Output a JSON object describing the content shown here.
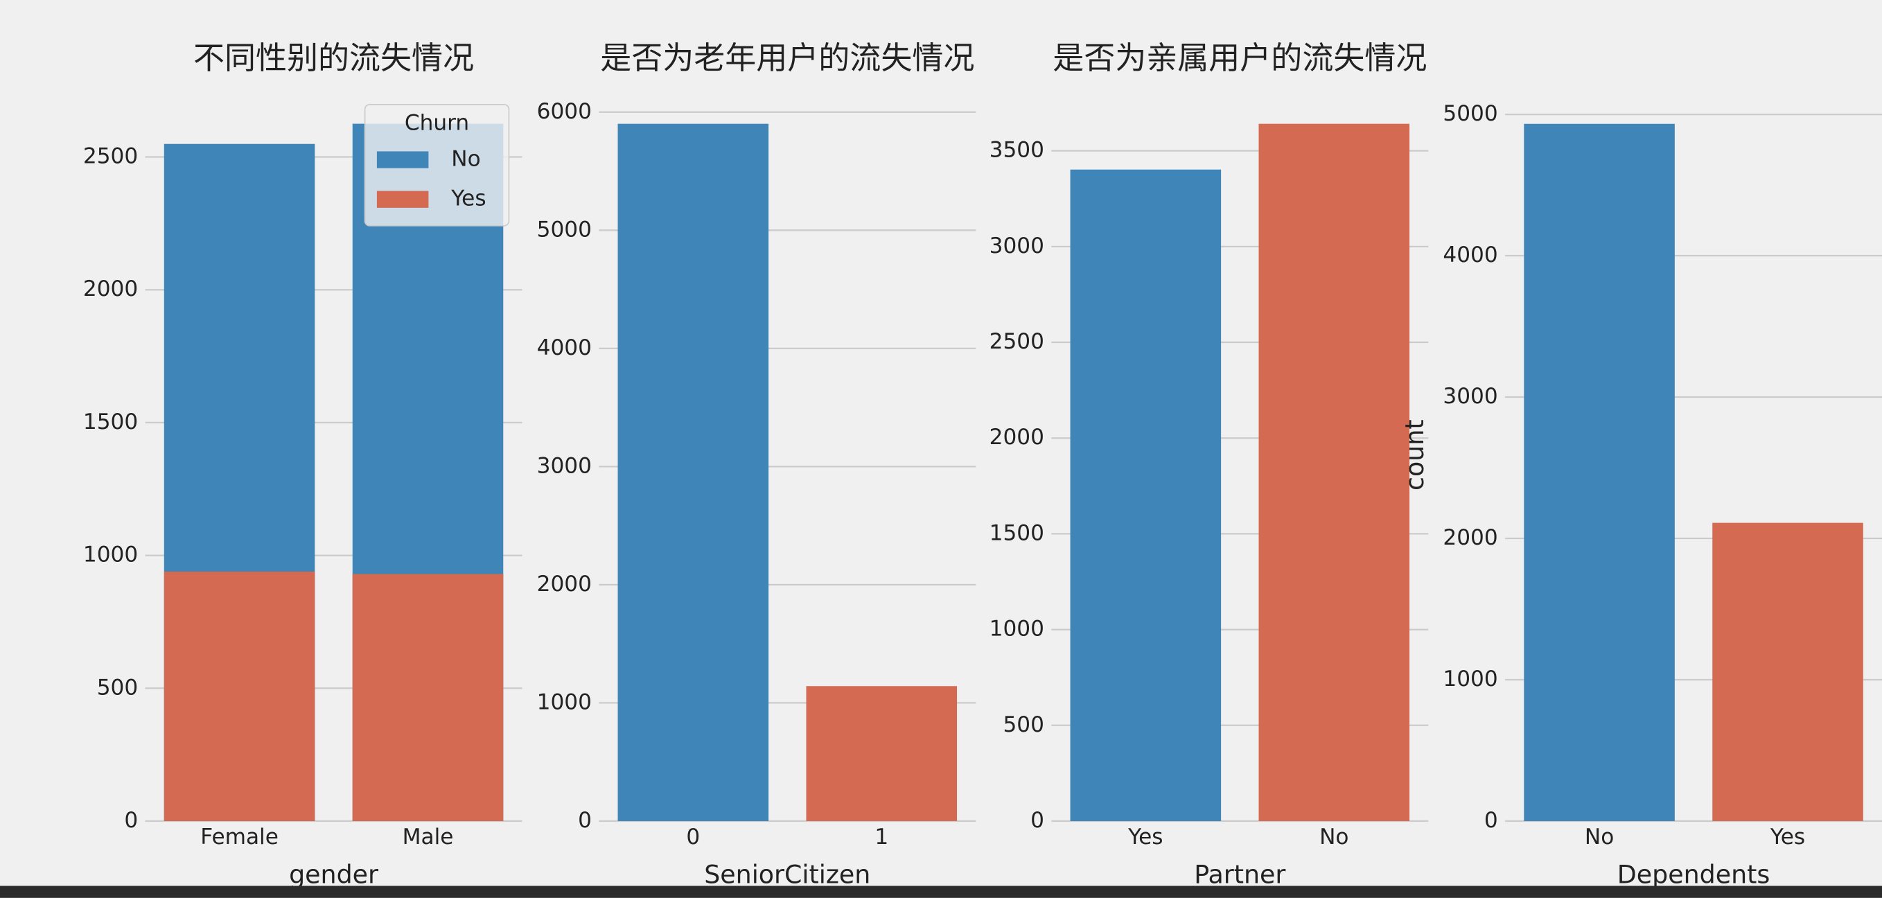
{
  "chart_data": [
    {
      "type": "bar",
      "title": "不同性别的流失情况",
      "xlabel": "gender",
      "categories": [
        "Female",
        "Male"
      ],
      "series": [
        {
          "name": "No",
          "color": "#3f85b8",
          "values": [
            2549,
            2625
          ]
        },
        {
          "name": "Yes",
          "color": "#d46a51",
          "values": [
            939,
            930
          ]
        }
      ],
      "legend_title": "Churn",
      "legend": "upper right",
      "ylim": [
        0,
        2756
      ],
      "yticks": [
        0,
        500,
        1000,
        1500,
        2000,
        2500
      ],
      "grid": true
    },
    {
      "type": "bar",
      "title": "是否为老年用户的流失情况",
      "xlabel": "SeniorCitizen",
      "categories": [
        "0",
        "1"
      ],
      "values": [
        5901,
        1142
      ],
      "colors": [
        "#3f85b8",
        "#d46a51"
      ],
      "ylim": [
        0,
        6196
      ],
      "yticks": [
        0,
        1000,
        2000,
        3000,
        4000,
        5000,
        6000
      ],
      "grid": true
    },
    {
      "type": "bar",
      "title": "是否为亲属用户的流失情况",
      "xlabel": "Partner",
      "categories": [
        "Yes",
        "No"
      ],
      "values": [
        3402,
        3641
      ],
      "colors": [
        "#3f85b8",
        "#d46a51"
      ],
      "ylim": [
        0,
        3823
      ],
      "yticks": [
        0,
        500,
        1000,
        1500,
        2000,
        2500,
        3000,
        3500
      ],
      "grid": true
    },
    {
      "type": "bar",
      "xlabel": "Dependents",
      "ylabel": "count",
      "categories": [
        "No",
        "Yes"
      ],
      "values": [
        4933,
        2110
      ],
      "colors": [
        "#3f85b8",
        "#d46a51"
      ],
      "ylim": [
        0,
        5180
      ],
      "yticks": [
        0,
        1000,
        2000,
        3000,
        4000,
        5000
      ],
      "grid": true
    }
  ]
}
